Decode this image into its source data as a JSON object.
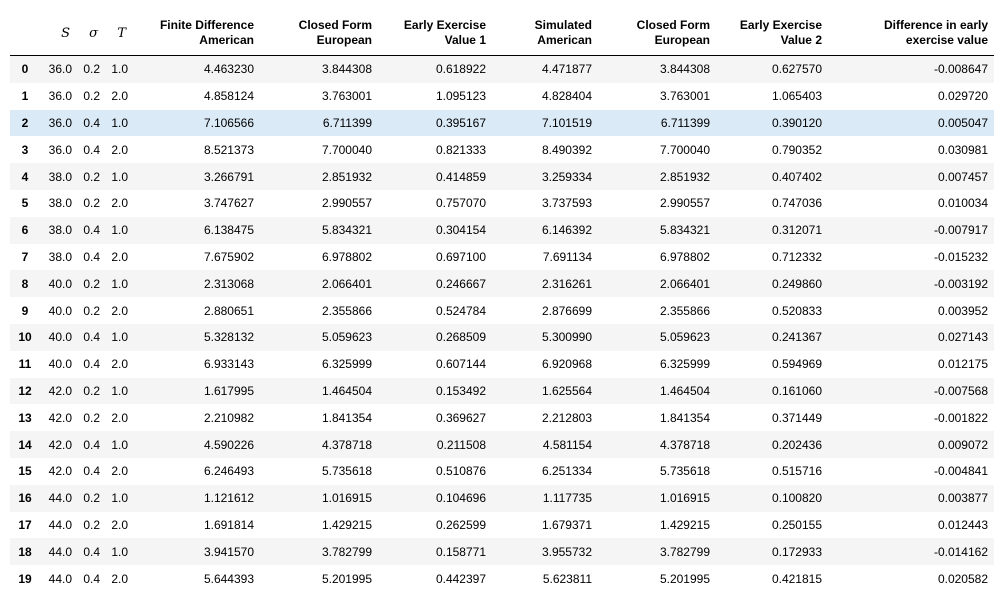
{
  "table": {
    "headers": {
      "index": "",
      "s": "S",
      "sigma": "σ",
      "t": "T",
      "fd_american": [
        "Finite Difference",
        "American"
      ],
      "cf_european_1": [
        "Closed Form",
        "European"
      ],
      "eev_1": [
        "Early Exercise",
        "Value 1"
      ],
      "sim_american": [
        "Simulated",
        "American"
      ],
      "cf_european_2": [
        "Closed Form",
        "European"
      ],
      "eev_2": [
        "Early Exercise",
        "Value 2"
      ],
      "diff": [
        "Difference in early",
        "exercise value"
      ]
    },
    "highlight_row": 2,
    "rows": [
      {
        "idx": "0",
        "s": "36.0",
        "sigma": "0.2",
        "t": "1.0",
        "fd": "4.463230",
        "cf1": "3.844308",
        "e1": "0.618922",
        "sim": "4.471877",
        "cf2": "3.844308",
        "e2": "0.627570",
        "diff": "-0.008647"
      },
      {
        "idx": "1",
        "s": "36.0",
        "sigma": "0.2",
        "t": "2.0",
        "fd": "4.858124",
        "cf1": "3.763001",
        "e1": "1.095123",
        "sim": "4.828404",
        "cf2": "3.763001",
        "e2": "1.065403",
        "diff": "0.029720"
      },
      {
        "idx": "2",
        "s": "36.0",
        "sigma": "0.4",
        "t": "1.0",
        "fd": "7.106566",
        "cf1": "6.711399",
        "e1": "0.395167",
        "sim": "7.101519",
        "cf2": "6.711399",
        "e2": "0.390120",
        "diff": "0.005047"
      },
      {
        "idx": "3",
        "s": "36.0",
        "sigma": "0.4",
        "t": "2.0",
        "fd": "8.521373",
        "cf1": "7.700040",
        "e1": "0.821333",
        "sim": "8.490392",
        "cf2": "7.700040",
        "e2": "0.790352",
        "diff": "0.030981"
      },
      {
        "idx": "4",
        "s": "38.0",
        "sigma": "0.2",
        "t": "1.0",
        "fd": "3.266791",
        "cf1": "2.851932",
        "e1": "0.414859",
        "sim": "3.259334",
        "cf2": "2.851932",
        "e2": "0.407402",
        "diff": "0.007457"
      },
      {
        "idx": "5",
        "s": "38.0",
        "sigma": "0.2",
        "t": "2.0",
        "fd": "3.747627",
        "cf1": "2.990557",
        "e1": "0.757070",
        "sim": "3.737593",
        "cf2": "2.990557",
        "e2": "0.747036",
        "diff": "0.010034"
      },
      {
        "idx": "6",
        "s": "38.0",
        "sigma": "0.4",
        "t": "1.0",
        "fd": "6.138475",
        "cf1": "5.834321",
        "e1": "0.304154",
        "sim": "6.146392",
        "cf2": "5.834321",
        "e2": "0.312071",
        "diff": "-0.007917"
      },
      {
        "idx": "7",
        "s": "38.0",
        "sigma": "0.4",
        "t": "2.0",
        "fd": "7.675902",
        "cf1": "6.978802",
        "e1": "0.697100",
        "sim": "7.691134",
        "cf2": "6.978802",
        "e2": "0.712332",
        "diff": "-0.015232"
      },
      {
        "idx": "8",
        "s": "40.0",
        "sigma": "0.2",
        "t": "1.0",
        "fd": "2.313068",
        "cf1": "2.066401",
        "e1": "0.246667",
        "sim": "2.316261",
        "cf2": "2.066401",
        "e2": "0.249860",
        "diff": "-0.003192"
      },
      {
        "idx": "9",
        "s": "40.0",
        "sigma": "0.2",
        "t": "2.0",
        "fd": "2.880651",
        "cf1": "2.355866",
        "e1": "0.524784",
        "sim": "2.876699",
        "cf2": "2.355866",
        "e2": "0.520833",
        "diff": "0.003952"
      },
      {
        "idx": "10",
        "s": "40.0",
        "sigma": "0.4",
        "t": "1.0",
        "fd": "5.328132",
        "cf1": "5.059623",
        "e1": "0.268509",
        "sim": "5.300990",
        "cf2": "5.059623",
        "e2": "0.241367",
        "diff": "0.027143"
      },
      {
        "idx": "11",
        "s": "40.0",
        "sigma": "0.4",
        "t": "2.0",
        "fd": "6.933143",
        "cf1": "6.325999",
        "e1": "0.607144",
        "sim": "6.920968",
        "cf2": "6.325999",
        "e2": "0.594969",
        "diff": "0.012175"
      },
      {
        "idx": "12",
        "s": "42.0",
        "sigma": "0.2",
        "t": "1.0",
        "fd": "1.617995",
        "cf1": "1.464504",
        "e1": "0.153492",
        "sim": "1.625564",
        "cf2": "1.464504",
        "e2": "0.161060",
        "diff": "-0.007568"
      },
      {
        "idx": "13",
        "s": "42.0",
        "sigma": "0.2",
        "t": "2.0",
        "fd": "2.210982",
        "cf1": "1.841354",
        "e1": "0.369627",
        "sim": "2.212803",
        "cf2": "1.841354",
        "e2": "0.371449",
        "diff": "-0.001822"
      },
      {
        "idx": "14",
        "s": "42.0",
        "sigma": "0.4",
        "t": "1.0",
        "fd": "4.590226",
        "cf1": "4.378718",
        "e1": "0.211508",
        "sim": "4.581154",
        "cf2": "4.378718",
        "e2": "0.202436",
        "diff": "0.009072"
      },
      {
        "idx": "15",
        "s": "42.0",
        "sigma": "0.4",
        "t": "2.0",
        "fd": "6.246493",
        "cf1": "5.735618",
        "e1": "0.510876",
        "sim": "6.251334",
        "cf2": "5.735618",
        "e2": "0.515716",
        "diff": "-0.004841"
      },
      {
        "idx": "16",
        "s": "44.0",
        "sigma": "0.2",
        "t": "1.0",
        "fd": "1.121612",
        "cf1": "1.016915",
        "e1": "0.104696",
        "sim": "1.117735",
        "cf2": "1.016915",
        "e2": "0.100820",
        "diff": "0.003877"
      },
      {
        "idx": "17",
        "s": "44.0",
        "sigma": "0.2",
        "t": "2.0",
        "fd": "1.691814",
        "cf1": "1.429215",
        "e1": "0.262599",
        "sim": "1.679371",
        "cf2": "1.429215",
        "e2": "0.250155",
        "diff": "0.012443"
      },
      {
        "idx": "18",
        "s": "44.0",
        "sigma": "0.4",
        "t": "1.0",
        "fd": "3.941570",
        "cf1": "3.782799",
        "e1": "0.158771",
        "sim": "3.955732",
        "cf2": "3.782799",
        "e2": "0.172933",
        "diff": "-0.014162"
      },
      {
        "idx": "19",
        "s": "44.0",
        "sigma": "0.4",
        "t": "2.0",
        "fd": "5.644393",
        "cf1": "5.201995",
        "e1": "0.442397",
        "sim": "5.623811",
        "cf2": "5.201995",
        "e2": "0.421815",
        "diff": "0.020582"
      }
    ]
  }
}
